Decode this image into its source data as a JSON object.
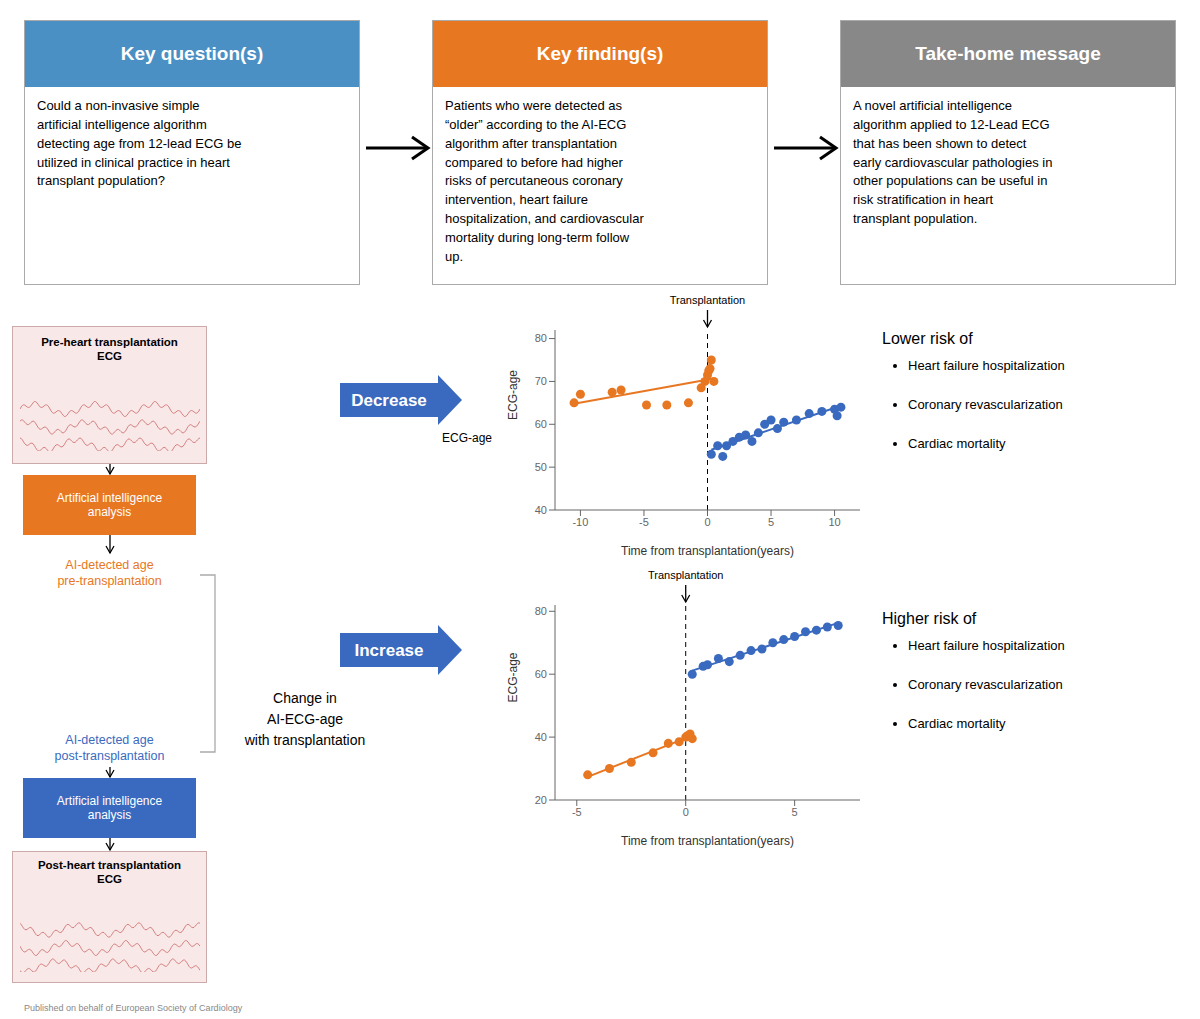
{
  "boxes": [
    {
      "title": "Key question(s)",
      "color": "#4a90c4",
      "text": "Could a non-invasive simple\nartificial intelligence algorithm\ndetecting age from 12-lead ECG be\nutilized in clinical practice in heart\ntransplant population?"
    },
    {
      "title": "Key finding(s)",
      "color": "#e87722",
      "text": "Patients who were detected as\n“older” according to the AI-ECG\nalgorithm after transplantation\ncompared to before had higher\nrisks of percutaneous coronary\nintervention, heart failure\nhospitalization, and cardiovascular\nmortality during long-term follow\nup."
    },
    {
      "title": "Take-home message",
      "color": "#888888",
      "text": "A novel artificial intelligence\nalgorithm applied to 12-Lead ECG\nthat has been shown to detect\nearly cardiovascular pathologies in\nother populations can be useful in\nrisk stratification in heart\ntransplant population."
    }
  ],
  "diagram": {
    "pre_ecg_title": "Pre-heart transplantation\nECG",
    "post_ecg_title": "Post-heart transplantation\nECG",
    "ai_label": "Artificial intelligence\nanalysis",
    "pre_age_label": "AI-detected age\npre-transplantation",
    "post_age_label": "AI-detected age\npost-transplantation",
    "change_label": "Change in\nAI-ECG-age\nwith transplantation",
    "decrease_label": "Decrease",
    "increase_label": "Increase",
    "orange_color": "#e87722",
    "blue_color": "#3a6abf",
    "arrow_color": "#3a6abf"
  },
  "risk": {
    "lower_title": "Lower risk of",
    "higher_title": "Higher risk of",
    "items": [
      "Heart failure hospitalization",
      "Coronary revascularization",
      "Cardiac mortality"
    ]
  },
  "credit_text": "Published on behalf of European Society of Cardiology",
  "chart_data": [
    {
      "type": "scatter",
      "xlabel": "Time from transplantation(years)",
      "ylabel": "ECG-age",
      "xlim": [
        -12,
        12
      ],
      "ylim": [
        40,
        82
      ],
      "xticks": [
        -10,
        -5,
        0,
        5,
        10
      ],
      "yticks": [
        40,
        50,
        60,
        70,
        80
      ],
      "grid": false,
      "vline": 0,
      "annotations": [
        "Transplantation",
        "ECG-age"
      ],
      "series": [
        {
          "type": "scatter",
          "color": "#e87722",
          "x": [
            -10.5,
            -10.0,
            -7.5,
            -6.8,
            -4.8,
            -3.2,
            -1.5,
            -0.5,
            -0.2,
            0.0,
            0.1,
            0.2,
            0.3,
            0.5
          ],
          "values": [
            65.0,
            67.0,
            67.5,
            68.0,
            64.5,
            64.5,
            65.0,
            68.5,
            70.0,
            71.5,
            72.5,
            73.0,
            75.0,
            70.0
          ]
        },
        {
          "type": "line",
          "color": "#e87722",
          "x": [
            -10.5,
            0.5
          ],
          "values": [
            64.776,
            70.659
          ]
        },
        {
          "type": "scatter",
          "color": "#3a6abf",
          "x": [
            0.3,
            0.8,
            1.2,
            1.5,
            2.0,
            2.5,
            3.0,
            3.5,
            4.0,
            4.5,
            5.0,
            5.5,
            6.0,
            7.0,
            8.0,
            9.0,
            10.0,
            10.2,
            10.5
          ],
          "values": [
            53.0,
            55.0,
            52.5,
            55.0,
            56.0,
            57.0,
            57.5,
            56.0,
            58.0,
            60.0,
            61.0,
            59.0,
            60.5,
            61.0,
            62.5,
            63.0,
            63.5,
            62.0,
            64.0
          ]
        },
        {
          "type": "line",
          "color": "#3a6abf",
          "x": [
            0.3,
            10.5
          ],
          "values": [
            54.055,
            64.33
          ]
        }
      ]
    },
    {
      "type": "scatter",
      "xlabel": "Time from transplantation(years)",
      "ylabel": "ECG-age",
      "xlim": [
        -6,
        8
      ],
      "ylim": [
        20,
        82
      ],
      "xticks": [
        -5,
        0,
        5
      ],
      "yticks": [
        20,
        40,
        60,
        80
      ],
      "grid": false,
      "vline": 0,
      "annotations": [
        "Transplantation"
      ],
      "series": [
        {
          "type": "scatter",
          "color": "#e87722",
          "x": [
            -4.5,
            -3.5,
            -2.5,
            -1.5,
            -0.8,
            -0.3,
            0.0,
            0.1,
            0.2,
            0.3
          ],
          "values": [
            28.0,
            30.0,
            32.0,
            35.0,
            38.0,
            38.5,
            40.0,
            40.5,
            41.0,
            39.5
          ]
        },
        {
          "type": "line",
          "color": "#e87722",
          "x": [
            -4.5,
            0.3
          ],
          "values": [
            27.362,
            40.489
          ]
        },
        {
          "type": "scatter",
          "color": "#3a6abf",
          "x": [
            0.3,
            0.8,
            1.0,
            1.5,
            2.0,
            2.5,
            3.0,
            3.5,
            4.0,
            4.5,
            5.0,
            5.5,
            6.0,
            6.5,
            7.0
          ],
          "values": [
            60.0,
            62.5,
            63.0,
            65.0,
            64.0,
            66.0,
            67.5,
            68.0,
            70.0,
            71.0,
            72.0,
            73.5,
            74.0,
            75.0,
            75.5
          ]
        },
        {
          "type": "line",
          "color": "#3a6abf",
          "x": [
            0.3,
            7.0
          ],
          "values": [
            61.123,
            76.309
          ]
        }
      ]
    }
  ]
}
